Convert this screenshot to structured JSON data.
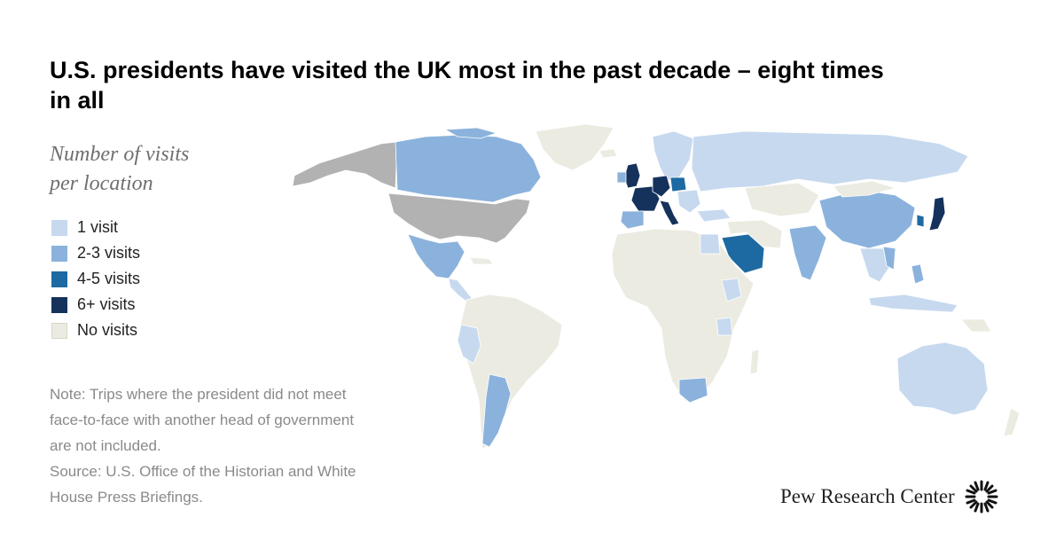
{
  "title": "U.S. presidents have visited the UK most in the past decade – eight times in all",
  "legend": {
    "title_line1": "Number of visits",
    "title_line2": "per location",
    "items": [
      {
        "label": "1 visit",
        "color": "#c6d9ef"
      },
      {
        "label": "2-3 visits",
        "color": "#8bb2dc"
      },
      {
        "label": "4-5 visits",
        "color": "#1d6aa2"
      },
      {
        "label": "6+ visits",
        "color": "#15325c"
      },
      {
        "label": "No visits",
        "color": "#ecebe2"
      }
    ]
  },
  "note": {
    "line1": "Note: Trips where the president did not meet",
    "line2": "face-to-face with another head of government",
    "line3": "are not included.",
    "line4": "Source: U.S. Office of the Historian and White",
    "line5": "House Press Briefings."
  },
  "logo": {
    "text": "Pew Research Center",
    "icon": "pew-sunburst-icon"
  },
  "colors": {
    "home_country": "#b2b2b2",
    "no_visits": "#ecebe2",
    "one": "#c6d9ef",
    "two_three": "#8bb2dc",
    "four_five": "#1d6aa2",
    "six_plus": "#15325c",
    "border": "#ffffff"
  }
}
